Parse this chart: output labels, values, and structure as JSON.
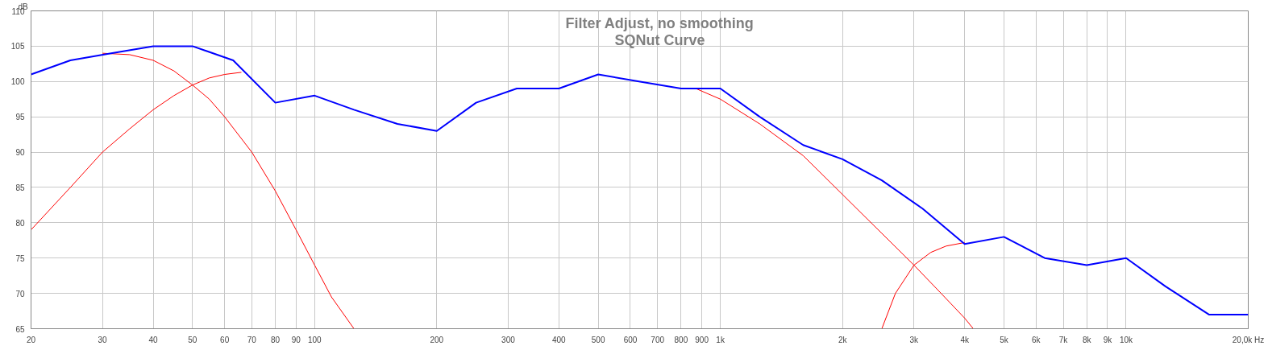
{
  "chart_data": {
    "type": "line",
    "title": "Filter Adjust, no smoothing",
    "subtitle": "SQNut Curve",
    "ylabel": "dB",
    "log": "x",
    "grid": true,
    "marker": "none",
    "line_style": "solid",
    "xlim": [
      20,
      20000
    ],
    "ylim": [
      65,
      110
    ],
    "xticks": [
      20,
      30,
      40,
      50,
      60,
      70,
      80,
      90,
      100,
      200,
      300,
      400,
      500,
      600,
      700,
      800,
      900,
      {
        "value": 1000,
        "label": "1k"
      },
      {
        "value": 2000,
        "label": "2k"
      },
      {
        "value": 3000,
        "label": "3k"
      },
      {
        "value": 4000,
        "label": "4k"
      },
      {
        "value": 5000,
        "label": "5k"
      },
      {
        "value": 6000,
        "label": "6k"
      },
      {
        "value": 7000,
        "label": "7k"
      },
      {
        "value": 8000,
        "label": "8k"
      },
      {
        "value": 9000,
        "label": "9k"
      },
      {
        "value": 10000,
        "label": "10k"
      },
      {
        "value": 20000,
        "label": "20,0k Hz"
      }
    ],
    "yticks": [
      65,
      70,
      75,
      80,
      85,
      90,
      95,
      100,
      105,
      110
    ],
    "series": [
      {
        "color": "#ff0000",
        "x": [
          30,
          35,
          40,
          45,
          50,
          55,
          60,
          70,
          80,
          90,
          100,
          110,
          125
        ],
        "values": [
          104,
          103.8,
          103,
          101.5,
          99.5,
          97.5,
          95,
          90,
          84.5,
          79,
          74,
          69.5,
          65
        ]
      },
      {
        "color": "#ff0000",
        "x": [
          20,
          25,
          30,
          35,
          40,
          45,
          50,
          55,
          60,
          66
        ],
        "values": [
          79,
          85,
          90,
          93.3,
          96,
          98,
          99.5,
          100.5,
          101,
          101.3
        ]
      },
      {
        "color": "#ff0000",
        "x": [
          870,
          1000,
          1250,
          1600,
          2000,
          2500,
          3000,
          3500,
          4000,
          4200
        ],
        "values": [
          99,
          97.5,
          94,
          89.5,
          84,
          78.5,
          74,
          70,
          66.5,
          65
        ]
      },
      {
        "color": "#ff0000",
        "x": [
          2500,
          2700,
          3000,
          3300,
          3600,
          4000
        ],
        "values": [
          65,
          70,
          74,
          75.8,
          76.7,
          77.2
        ]
      },
      {
        "color": "#0000ff",
        "x": [
          20,
          25,
          31.5,
          40,
          50,
          63,
          80,
          100,
          125,
          160,
          200,
          250,
          315,
          400,
          500,
          630,
          800,
          1000,
          1250,
          1600,
          2000,
          2500,
          3150,
          4000,
          5000,
          6300,
          8000,
          10000,
          12500,
          16000,
          20000
        ],
        "values": [
          101,
          103,
          104,
          105,
          105,
          103,
          97,
          98,
          96,
          94,
          93,
          97,
          99,
          99,
          101,
          100,
          99,
          99,
          95,
          91,
          89,
          86,
          82,
          77,
          78,
          75,
          74,
          75,
          71,
          67,
          67
        ]
      }
    ]
  }
}
